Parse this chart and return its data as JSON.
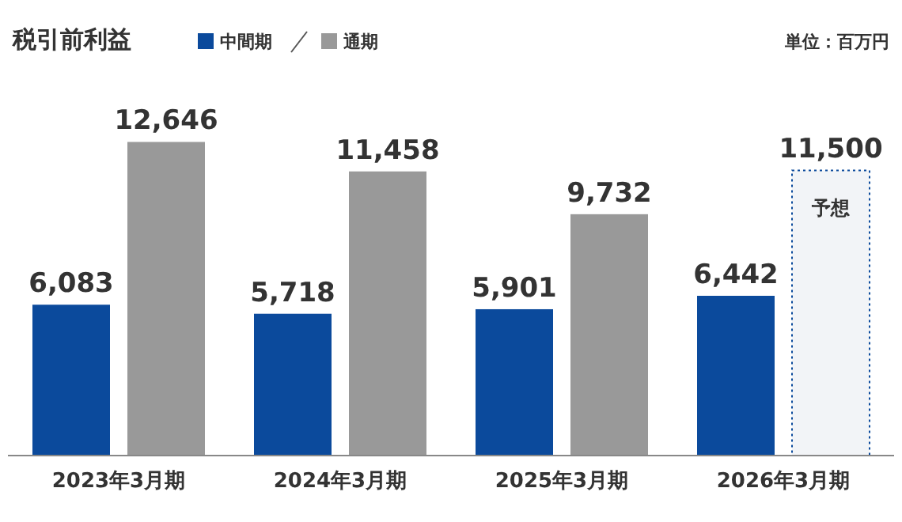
{
  "chart_data": {
    "type": "bar",
    "title": "税引前利益",
    "categories": [
      "2023年3月期",
      "2024年3月期",
      "2025年3月期",
      "2026年3月期"
    ],
    "series": [
      {
        "name": "中間期",
        "color": "#0b4a9c",
        "values": [
          6083,
          5718,
          5901,
          6442
        ],
        "value_labels": [
          "6,083",
          "5,718",
          "5,901",
          "6,442"
        ]
      },
      {
        "name": "通期",
        "color": "#999999",
        "colors": [
          "#999999",
          "#999999",
          "#999999",
          "#f2f4f7"
        ],
        "values": [
          12646,
          11458,
          9732,
          11500
        ],
        "value_labels": [
          "12,646",
          "11,458",
          "9,732",
          "11,500"
        ]
      }
    ],
    "legend": "top left",
    "annotations": [
      "単位：百万円",
      "予想"
    ]
  }
}
